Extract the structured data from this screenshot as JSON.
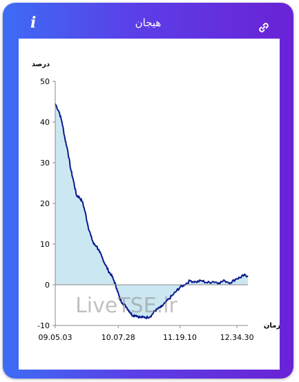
{
  "header": {
    "title": "هیجان",
    "info_icon": "info-icon",
    "link_icon": "link-icon"
  },
  "watermark": "LiveTSE.ir",
  "colors": {
    "line": "#0a1a8c",
    "fill": "#cbe7f2",
    "axis": "#8a8a8a"
  },
  "chart_data": {
    "type": "area",
    "ylabel": "درصد",
    "xlabel": "زمان",
    "ylim": [
      -10,
      50
    ],
    "y_ticks": [
      50,
      40,
      30,
      20,
      10,
      0,
      -10
    ],
    "x_tick_labels": [
      "09.05.03",
      "10.07.28",
      "11.19.10",
      "12.34.30"
    ],
    "x_range": [
      0,
      100
    ],
    "x_tick_positions": [
      0,
      32.7,
      64.7,
      94.3
    ],
    "grid": false,
    "series": [
      {
        "values": [
          [
            0,
            44.5
          ],
          [
            2,
            42.5
          ],
          [
            3.5,
            40
          ],
          [
            5,
            36
          ],
          [
            6.5,
            33
          ],
          [
            8,
            28.5
          ],
          [
            9.5,
            25.5
          ],
          [
            11,
            22
          ],
          [
            12.5,
            21.5
          ],
          [
            14,
            20.5
          ],
          [
            15.5,
            18
          ],
          [
            17,
            14.5
          ],
          [
            18.5,
            12
          ],
          [
            20,
            10
          ],
          [
            21.5,
            9.5
          ],
          [
            23,
            8
          ],
          [
            24.5,
            6.5
          ],
          [
            26,
            5
          ],
          [
            27.5,
            3.5
          ],
          [
            29,
            2.5
          ],
          [
            30.5,
            1
          ],
          [
            32,
            -1
          ],
          [
            33.5,
            -3.5
          ],
          [
            35,
            -4.5
          ],
          [
            37,
            -5.5
          ],
          [
            38.5,
            -6.5
          ],
          [
            40,
            -7.5
          ],
          [
            42,
            -7.5
          ],
          [
            44,
            -8
          ],
          [
            46,
            -8
          ],
          [
            48,
            -8
          ],
          [
            50,
            -7.5
          ],
          [
            51.5,
            -6.5
          ],
          [
            53,
            -6
          ],
          [
            55,
            -5.5
          ],
          [
            57,
            -4.5
          ],
          [
            59,
            -3.5
          ],
          [
            61,
            -2.5
          ],
          [
            63,
            -1.5
          ],
          [
            65,
            -0.5
          ],
          [
            67,
            0
          ],
          [
            70,
            1
          ],
          [
            73,
            0.7
          ],
          [
            76,
            1
          ],
          [
            79,
            0.5
          ],
          [
            82,
            0.8
          ],
          [
            85,
            0.5
          ],
          [
            88,
            1
          ],
          [
            91,
            0.5
          ],
          [
            94,
            1.5
          ],
          [
            96,
            1.8
          ],
          [
            98,
            2.3
          ],
          [
            100,
            2.2
          ]
        ]
      }
    ]
  }
}
